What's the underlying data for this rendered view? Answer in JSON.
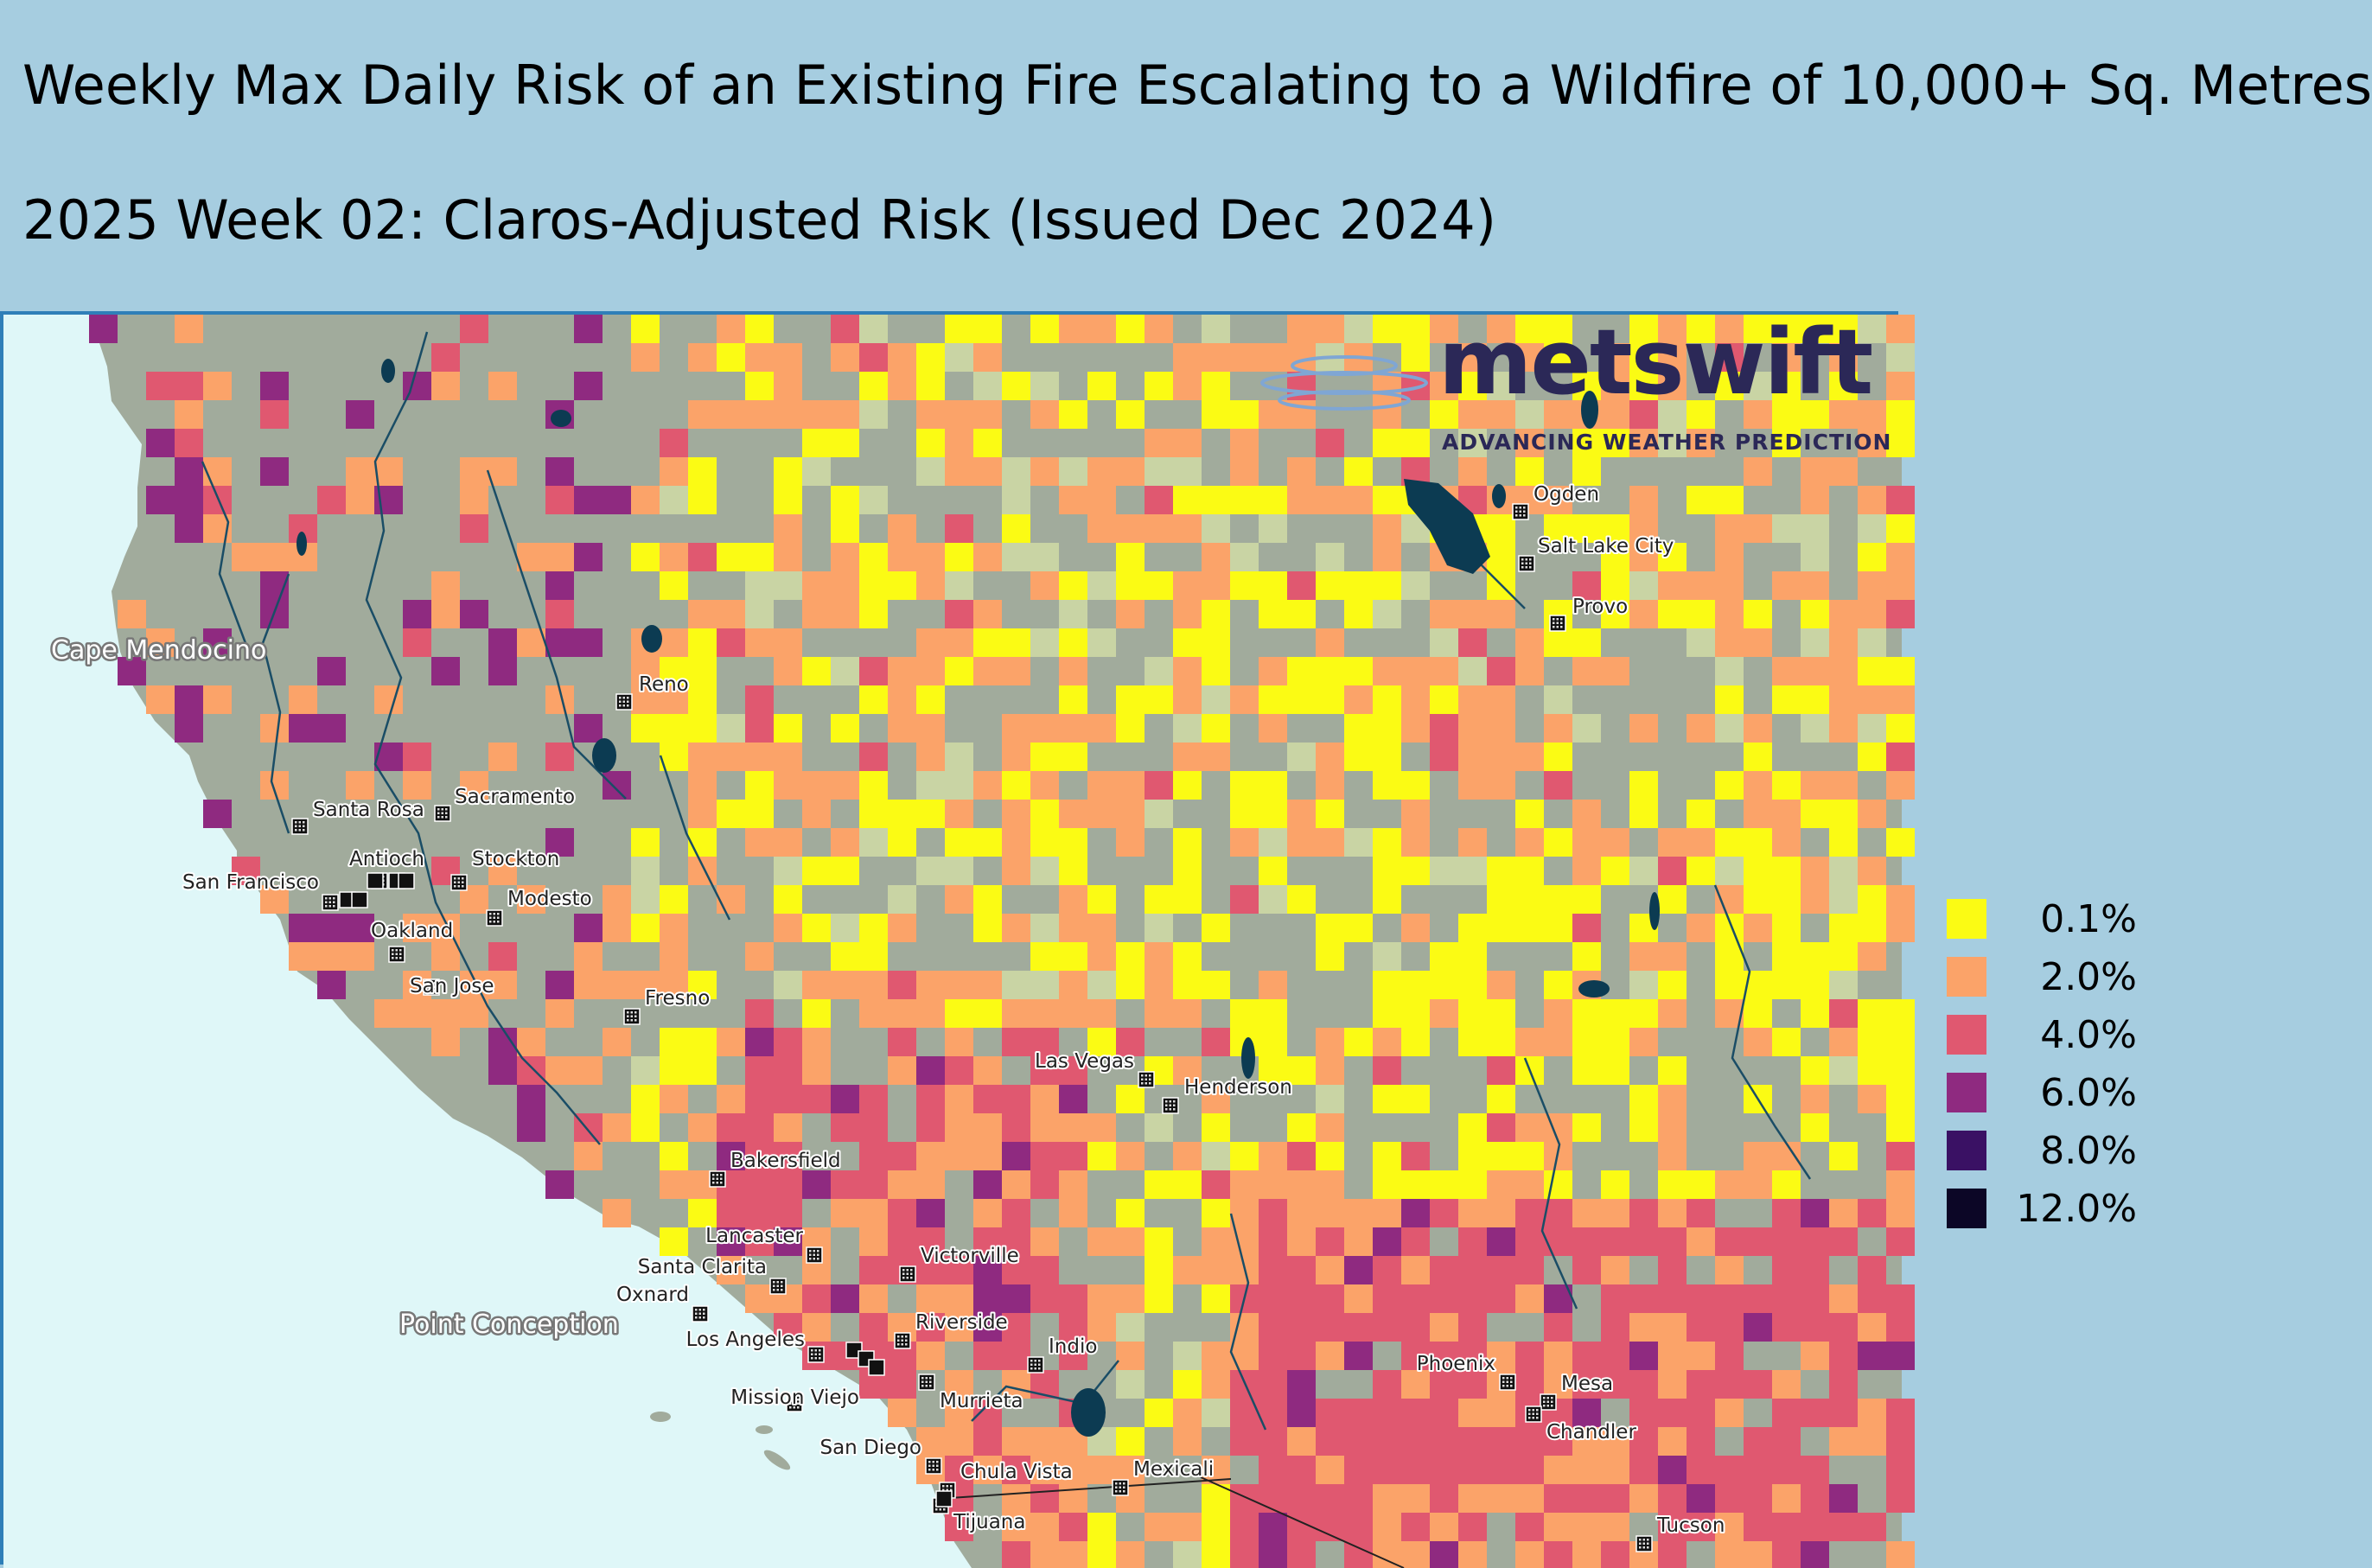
{
  "header": {
    "title": "Weekly Max Daily Risk of an Existing Fire Escalating to a Wildfire of 10,000+ Sq. Metres",
    "subtitle": "2025 Week 02: Claros-Adjusted Risk (Issued Dec 2024)"
  },
  "brand": {
    "name": "metswift",
    "tagline": "ADVANCING WEATHER PREDICTION",
    "icon": "weather-rings-icon",
    "color": "#2b2857"
  },
  "legend": {
    "items": [
      {
        "label": "0.1%",
        "color": "#fbfb14"
      },
      {
        "label": "2.0%",
        "color": "#fba369"
      },
      {
        "label": "4.0%",
        "color": "#e05870"
      },
      {
        "label": "6.0%",
        "color": "#8f2a80"
      },
      {
        "label": "8.0%",
        "color": "#3a1164"
      },
      {
        "label": "12.0%",
        "color": "#0c0626"
      }
    ]
  },
  "map": {
    "colors": {
      "ocean": "#dff7f8",
      "land": "#a1ab9c",
      "water": "#0c3b52",
      "rivers": "#1a4d66",
      "border": "#2f7fb8"
    },
    "feature_labels": [
      "Cape Mendocino",
      "Point Conception"
    ],
    "cities": [
      "Ogden",
      "Salt Lake City",
      "Provo",
      "Reno",
      "Sacramento",
      "Santa Rosa",
      "Antioch",
      "Stockton",
      "San Francisco",
      "Modesto",
      "Oakland",
      "San Jose",
      "Fresno",
      "Las Vegas",
      "Henderson",
      "Bakersfield",
      "Lancaster",
      "Victorville",
      "Santa Clarita",
      "Oxnard",
      "Riverside",
      "Los Angeles",
      "Indio",
      "Mission Viejo",
      "Murrieta",
      "San Diego",
      "Chula Vista",
      "Mexicali",
      "Tijuana",
      "Phoenix",
      "Mesa",
      "Chandler",
      "Tucson"
    ]
  }
}
